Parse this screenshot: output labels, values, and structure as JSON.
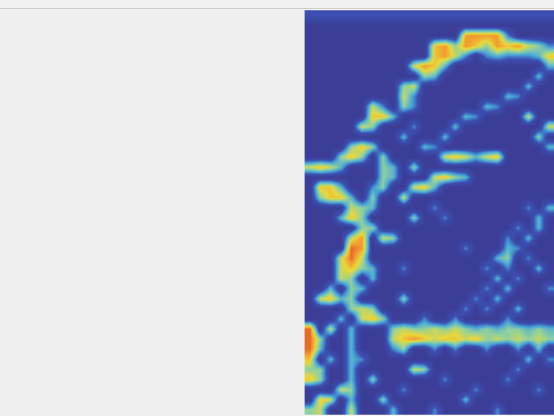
{
  "chart_data": {
    "type": "heatmap",
    "tick_labels": false,
    "zlim": [
      0,
      1
    ],
    "cells": [
      [
        0.2,
        0.2,
        0.2,
        0.2,
        0.2,
        0.2,
        0.2,
        0.2,
        0.2,
        0.2,
        0.2,
        0.2,
        0.2,
        0.2,
        0.2,
        0.2,
        0.2,
        0.2,
        0.2,
        0.2,
        0.2,
        0.2,
        0.2,
        0.2
      ],
      [
        0,
        0,
        0,
        0,
        0,
        0,
        0,
        0,
        0,
        0,
        0,
        0,
        0,
        0,
        0,
        0,
        0,
        0,
        0,
        0,
        0,
        0,
        0,
        0
      ],
      [
        0,
        0,
        0,
        0,
        0,
        0,
        0,
        0,
        0,
        0,
        0,
        0,
        0,
        0,
        0,
        0.8,
        0.8,
        0.8,
        0.8,
        0.3,
        0,
        0,
        0,
        0
      ],
      [
        0,
        0,
        0,
        0,
        0,
        0,
        0,
        0,
        0,
        0,
        0,
        0,
        0.7,
        0.8,
        0.5,
        0.8,
        0.7,
        0.5,
        0.8,
        0.7,
        0.8,
        0.6,
        0.5,
        0.3
      ],
      [
        0,
        0,
        0,
        0,
        0,
        0,
        0,
        0,
        0,
        0,
        0,
        0,
        0.7,
        0.8,
        0.6,
        0.3,
        0,
        0.3,
        0.4,
        0.3,
        0.3,
        0.3,
        0.4,
        0.7
      ],
      [
        0,
        0,
        0,
        0,
        0,
        0,
        0,
        0,
        0,
        0,
        0.6,
        0.8,
        0.7,
        0.4,
        0,
        0,
        0,
        0,
        0,
        0,
        0,
        0,
        0,
        0.4
      ],
      [
        0,
        0,
        0,
        0,
        0,
        0,
        0,
        0,
        0,
        0,
        0,
        0.5,
        0.4,
        0,
        0,
        0,
        0,
        0,
        0,
        0,
        0,
        0,
        0.4,
        0
      ],
      [
        0,
        0,
        0,
        0,
        0,
        0,
        0,
        0,
        0,
        0.5,
        0.6,
        0,
        0,
        0,
        0,
        0,
        0,
        0,
        0,
        0,
        0,
        0.4,
        0,
        0
      ],
      [
        0,
        0,
        0,
        0,
        0,
        0,
        0,
        0,
        0,
        0.6,
        0.3,
        0,
        0,
        0,
        0,
        0,
        0,
        0,
        0,
        0.4,
        0.3,
        0,
        0,
        0
      ],
      [
        0,
        0,
        0,
        0,
        0,
        0,
        0.6,
        0.3,
        0,
        0.5,
        0.3,
        0,
        0,
        0,
        0,
        0,
        0,
        0.4,
        0.3,
        0,
        0,
        0,
        0,
        0
      ],
      [
        0,
        0,
        0,
        0,
        0,
        0,
        0.7,
        0.7,
        0.4,
        0,
        0,
        0,
        0,
        0,
        0,
        0.4,
        0.3,
        0,
        0,
        0,
        0,
        0.6,
        0,
        0
      ],
      [
        0,
        0,
        0,
        0,
        0,
        0.6,
        0.5,
        0,
        0,
        0,
        0.3,
        0,
        0,
        0,
        0.4,
        0,
        0,
        0,
        0,
        0,
        0,
        0,
        0,
        0.6
      ],
      [
        0,
        0,
        0,
        0,
        0,
        0,
        0,
        0,
        0,
        0.4,
        0,
        0,
        0,
        0.4,
        0,
        0,
        0,
        0,
        0,
        0,
        0,
        0,
        0.5,
        0
      ],
      [
        0,
        0,
        0,
        0,
        0.5,
        0.7,
        0.5,
        0,
        0,
        0,
        0,
        0.4,
        0.3,
        0,
        0,
        0,
        0,
        0,
        0,
        0,
        0,
        0,
        0,
        0.4
      ],
      [
        0,
        0,
        0,
        0.5,
        0.7,
        0.5,
        0,
        0.5,
        0,
        0,
        0,
        0,
        0,
        0.6,
        0.7,
        0.6,
        0.4,
        0.6,
        0.7,
        0,
        0,
        0,
        0,
        0
      ],
      [
        0.6,
        0.7,
        0.6,
        0.4,
        0,
        0,
        0,
        0.5,
        0.4,
        0,
        0.5,
        0,
        0,
        0,
        0,
        0,
        0,
        0,
        0,
        0,
        0,
        0,
        0,
        0
      ],
      [
        0,
        0,
        0,
        0,
        0,
        0,
        0,
        0.5,
        0.4,
        0,
        0,
        0,
        0.6,
        0.7,
        0.5,
        0.4,
        0,
        0,
        0,
        0,
        0,
        0,
        0,
        0
      ],
      [
        0,
        0.7,
        0.7,
        0.4,
        0,
        0,
        0.3,
        0.5,
        0,
        0,
        0.6,
        0.7,
        0.4,
        0,
        0,
        0,
        0,
        0,
        0,
        0,
        0,
        0,
        0,
        0
      ],
      [
        0,
        0.5,
        0.7,
        0.7,
        0.4,
        0,
        0.5,
        0,
        0,
        0.6,
        0,
        0,
        0,
        0,
        0,
        0,
        0,
        0,
        0,
        0,
        0,
        0,
        0,
        0
      ],
      [
        0,
        0,
        0,
        0,
        0.6,
        0.5,
        0.4,
        0,
        0,
        0,
        0,
        0,
        0.3,
        0,
        0,
        0,
        0,
        0,
        0,
        0,
        0,
        0.3,
        0,
        0.4
      ],
      [
        0,
        0,
        0,
        0.4,
        0.7,
        0.5,
        0,
        0,
        0,
        0,
        0.5,
        0,
        0,
        0.3,
        0,
        0,
        0,
        0,
        0,
        0,
        0,
        0,
        0.4,
        0
      ],
      [
        0,
        0,
        0,
        0,
        0,
        0.5,
        0.5,
        0,
        0,
        0,
        0,
        0,
        0,
        0,
        0,
        0,
        0,
        0,
        0,
        0,
        0.3,
        0,
        0.4,
        0
      ],
      [
        0,
        0,
        0,
        0,
        0.6,
        0.8,
        0,
        0.6,
        0.5,
        0,
        0,
        0,
        0,
        0,
        0,
        0,
        0,
        0,
        0,
        0.3,
        0,
        0.4,
        0,
        0
      ],
      [
        0,
        0,
        0,
        0,
        0.9,
        0.8,
        0,
        0,
        0,
        0,
        0,
        0,
        0,
        0,
        0,
        0.3,
        0,
        0,
        0,
        0.4,
        0.3,
        0,
        0,
        0
      ],
      [
        0,
        0,
        0,
        0.6,
        0.9,
        0.6,
        0,
        0,
        0,
        0,
        0,
        0,
        0,
        0,
        0,
        0,
        0,
        0,
        0.4,
        0.5,
        0,
        0.3,
        0,
        0
      ],
      [
        0,
        0,
        0,
        0.6,
        0.7,
        0.5,
        0.4,
        0,
        0,
        0.3,
        0,
        0,
        0,
        0,
        0,
        0,
        0,
        0.3,
        0,
        0.3,
        0,
        0,
        0.4,
        0
      ],
      [
        0,
        0,
        0,
        0.6,
        0.5,
        0,
        0.4,
        0,
        0,
        0,
        0,
        0,
        0,
        0,
        0,
        0,
        0,
        0,
        0.4,
        0,
        0.3,
        0,
        0,
        0
      ],
      [
        0,
        0,
        0.4,
        0,
        0.5,
        0.4,
        0,
        0,
        0,
        0,
        0,
        0,
        0,
        0,
        0,
        0,
        0,
        0.3,
        0,
        0.4,
        0,
        0,
        0,
        0.3
      ],
      [
        0,
        0.6,
        0.7,
        0.4,
        0.5,
        0,
        0,
        0,
        0,
        0.5,
        0,
        0,
        0,
        0,
        0,
        0,
        0.3,
        0,
        0.4,
        0,
        0,
        0,
        0,
        0
      ],
      [
        0,
        0,
        0,
        0,
        0.5,
        0.6,
        0.5,
        0,
        0,
        0,
        0,
        0,
        0,
        0,
        0,
        0.3,
        0,
        0.3,
        0,
        0,
        0.4,
        0,
        0,
        0
      ],
      [
        0,
        0,
        0,
        0.4,
        0,
        0.6,
        0.7,
        0.5,
        0,
        0,
        0,
        0.3,
        0,
        0,
        0.3,
        0,
        0,
        0,
        0,
        0.3,
        0,
        0,
        0,
        0
      ],
      [
        0.9,
        0,
        0.6,
        0,
        0.4,
        0,
        0,
        0,
        0.5,
        0.6,
        0.5,
        0.5,
        0.6,
        0.5,
        0.6,
        0.5,
        0.4,
        0.5,
        0.4,
        0.5,
        0.5,
        0.4,
        0.5,
        0.4
      ],
      [
        0.9,
        0.5,
        0,
        0,
        0.4,
        0,
        0,
        0,
        0.6,
        0.7,
        0.8,
        0.7,
        0.6,
        0.7,
        0.7,
        0.6,
        0.7,
        0.5,
        0.6,
        0.5,
        0.6,
        0.5,
        0.6,
        0.5
      ],
      [
        0.9,
        0.4,
        0,
        0,
        0.4,
        0,
        0,
        0,
        0.3,
        0.5,
        0,
        0,
        0.3,
        0,
        0.3,
        0,
        0,
        0.3,
        0,
        0,
        0.3,
        0,
        0.4,
        0
      ],
      [
        0.7,
        0,
        0.4,
        0,
        0.4,
        0.3,
        0,
        0,
        0,
        0,
        0,
        0,
        0,
        0,
        0,
        0,
        0,
        0,
        0,
        0,
        0,
        0.4,
        0,
        0.3
      ],
      [
        0.5,
        0.5,
        0,
        0,
        0.4,
        0,
        0,
        0,
        0,
        0,
        0.6,
        0.5,
        0,
        0,
        0,
        0,
        0,
        0,
        0,
        0,
        0.3,
        0,
        0,
        0
      ],
      [
        0.7,
        0.5,
        0,
        0,
        0.4,
        0,
        0.5,
        0,
        0,
        0,
        0,
        0,
        0,
        0.3,
        0,
        0,
        0,
        0,
        0,
        0.3,
        0,
        0,
        0,
        0
      ],
      [
        0,
        0,
        0,
        0.6,
        0.5,
        0,
        0,
        0,
        0,
        0.3,
        0,
        0,
        0,
        0,
        0,
        0,
        0.3,
        0,
        0,
        0,
        0,
        0,
        0.3,
        0
      ],
      [
        0,
        0.7,
        0.6,
        0,
        0.4,
        0,
        0,
        0.5,
        0,
        0,
        0,
        0,
        0,
        0,
        0,
        0.4,
        0,
        0,
        0,
        0,
        0,
        0,
        0,
        0
      ],
      [
        0.5,
        0.6,
        0,
        0,
        0.6,
        0,
        0,
        0,
        0.4,
        0,
        0,
        0,
        0.3,
        0,
        0,
        0,
        0,
        0,
        0.3,
        0,
        0,
        0,
        0,
        0
      ]
    ]
  }
}
